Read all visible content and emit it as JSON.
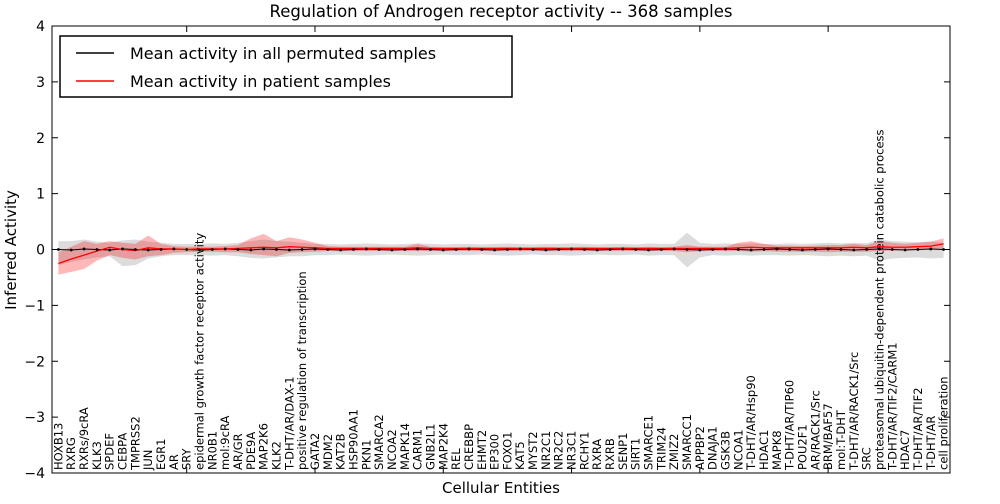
{
  "title": "Regulation of Androgen receptor activity -- 368 samples",
  "axes": {
    "xlabel": "Cellular Entities",
    "ylabel": "Inferred Activity"
  },
  "legend": {
    "items": [
      {
        "label": "Mean activity in all permuted samples",
        "color": "#000000"
      },
      {
        "label": "Mean activity in patient samples",
        "color": "#ff0000"
      }
    ],
    "position": "upper left"
  },
  "colors": {
    "patient_line": "#ff0000",
    "patient_fill": "rgba(255,0,0,0.28)",
    "permuted_line": "#000000",
    "permuted_fill": "rgba(128,128,128,0.28)",
    "axis": "#000000",
    "background": "#ffffff"
  },
  "chart_data": {
    "type": "line",
    "title": "Regulation of Androgen receptor activity -- 368 samples",
    "xlabel": "Cellular Entities",
    "ylabel": "Inferred Activity",
    "ylim": [
      -4,
      4
    ],
    "yticks": [
      -4,
      -3,
      -2,
      -1,
      0,
      1,
      2,
      3,
      4
    ],
    "xticks_major": [
      10,
      20,
      30,
      40,
      50,
      60
    ],
    "grid": false,
    "legend_position": "upper left",
    "marker_style": "black dot at every category on permuted mean",
    "categories": [
      "HOXB13",
      "RXRG",
      "RXRs/9cRA",
      "KLK3",
      "SPDEF",
      "CEBPA",
      "TMPRSS2",
      "JUN",
      "EGR1",
      "AR",
      "SRY",
      "epidermal growth factor receptor activity",
      "NR0B1",
      "mol:9cRA",
      "AR/GR",
      "PDE9A",
      "MAP2K6",
      "KLK2",
      "T-DHT/AR/DAX-1",
      "positive regulation of transcription",
      "GATA2",
      "MDM2",
      "KAT2B",
      "HSP90AA1",
      "PKN1",
      "SMARCA2",
      "NCOA2",
      "MAPK14",
      "CARM1",
      "GNB2L1",
      "MAP2K4",
      "REL",
      "CREBBP",
      "EHMT2",
      "EP300",
      "FOXO1",
      "KAT5",
      "MYST2",
      "NR2C1",
      "NR2C2",
      "NR3C1",
      "RCHY1",
      "RXRA",
      "RXRB",
      "SENP1",
      "SIRT1",
      "SMARCE1",
      "TRIM24",
      "ZMIZ2",
      "SMARCC1",
      "APPBP2",
      "DNAJA1",
      "GSK3B",
      "NCOA1",
      "T-DHT/AR/Hsp90",
      "HDAC1",
      "MAPK8",
      "T-DHT/AR/TIP60",
      "POU2F1",
      "AR/RACK1/Src",
      "BRM/BAF57",
      "mol:T-DHT",
      "T-DHT/AR/RACK1/Src",
      "SRC",
      "proteasomal ubiquitin-dependent protein catabolic process",
      "T-DHT/AR/TIF2/CARM1",
      "HDAC7",
      "T-DHT/AR/TIF2",
      "T-DHT/AR",
      "cell proliferation"
    ],
    "series": [
      {
        "name": "Mean activity in all permuted samples",
        "color": "#000000",
        "values": [
          0,
          -0.01,
          0.01,
          0,
          -0.01,
          0.01,
          0,
          -0.01,
          0,
          0.01,
          0,
          -0.01,
          0,
          0.01,
          0,
          -0.01,
          0.01,
          0,
          -0.01,
          0,
          0.01,
          0,
          -0.01,
          0,
          0.01,
          0,
          -0.01,
          0,
          0.01,
          0,
          -0.01,
          0,
          0.01,
          0,
          -0.01,
          0,
          0.01,
          0,
          -0.01,
          0,
          0.01,
          0,
          -0.01,
          0,
          0.01,
          0,
          -0.01,
          0,
          0.01,
          0,
          -0.01,
          0,
          0.01,
          0,
          -0.01,
          0,
          0.01,
          0,
          -0.01,
          0,
          0.01,
          0,
          -0.01,
          0,
          0.01,
          0,
          -0.01,
          0,
          0.01,
          0
        ],
        "band_upper": [
          0.15,
          0.15,
          0.18,
          0.14,
          0.12,
          0.16,
          0.18,
          0.14,
          0.12,
          0.1,
          0.1,
          0.1,
          0.11,
          0.1,
          0.12,
          0.15,
          0.18,
          0.15,
          0.14,
          0.12,
          0.1,
          0.1,
          0.09,
          0.1,
          0.11,
          0.1,
          0.09,
          0.1,
          0.11,
          0.1,
          0.09,
          0.1,
          0.1,
          0.09,
          0.1,
          0.11,
          0.1,
          0.09,
          0.1,
          0.1,
          0.11,
          0.1,
          0.09,
          0.1,
          0.1,
          0.09,
          0.11,
          0.1,
          0.1,
          0.3,
          0.12,
          0.1,
          0.11,
          0.1,
          0.11,
          0.1,
          0.1,
          0.11,
          0.1,
          0.11,
          0.12,
          0.11,
          0.12,
          0.11,
          0.18,
          0.15,
          0.14,
          0.13,
          0.14,
          0.12
        ],
        "band_lower": [
          -0.28,
          -0.22,
          -0.18,
          -0.14,
          -0.12,
          -0.3,
          -0.28,
          -0.16,
          -0.12,
          -0.1,
          -0.1,
          -0.1,
          -0.11,
          -0.1,
          -0.12,
          -0.15,
          -0.16,
          -0.14,
          -0.12,
          -0.12,
          -0.1,
          -0.1,
          -0.09,
          -0.1,
          -0.11,
          -0.1,
          -0.09,
          -0.1,
          -0.11,
          -0.1,
          -0.09,
          -0.1,
          -0.1,
          -0.09,
          -0.1,
          -0.11,
          -0.1,
          -0.09,
          -0.1,
          -0.1,
          -0.11,
          -0.1,
          -0.09,
          -0.1,
          -0.1,
          -0.09,
          -0.11,
          -0.1,
          -0.1,
          -0.32,
          -0.14,
          -0.1,
          -0.11,
          -0.1,
          -0.11,
          -0.1,
          -0.1,
          -0.11,
          -0.1,
          -0.11,
          -0.12,
          -0.11,
          -0.12,
          -0.11,
          -0.2,
          -0.16,
          -0.15,
          -0.14,
          -0.16,
          -0.15
        ]
      },
      {
        "name": "Mean activity in patient samples",
        "color": "#ff0000",
        "values": [
          -0.25,
          -0.17,
          -0.1,
          -0.03,
          0.04,
          0.0,
          -0.02,
          0.03,
          0.01,
          0.01,
          0.0,
          0.01,
          0.01,
          0.01,
          0.02,
          0.03,
          0.04,
          0.03,
          0.05,
          0.04,
          0.03,
          0.02,
          0.02,
          0.02,
          0.02,
          0.02,
          0.02,
          0.02,
          0.03,
          0.02,
          0.02,
          0.02,
          0.02,
          0.02,
          0.02,
          0.02,
          0.02,
          0.02,
          0.02,
          0.02,
          0.02,
          0.02,
          0.02,
          0.02,
          0.02,
          0.02,
          0.02,
          0.02,
          0.02,
          0.02,
          0.02,
          0.02,
          0.02,
          0.03,
          0.04,
          0.03,
          0.03,
          0.03,
          0.03,
          0.03,
          0.03,
          0.03,
          0.04,
          0.03,
          0.05,
          0.04,
          0.04,
          0.05,
          0.06,
          0.1
        ],
        "band_upper": [
          -0.05,
          0.05,
          0.15,
          0.1,
          0.15,
          0.12,
          0.1,
          0.25,
          0.1,
          0.06,
          0.05,
          0.05,
          0.05,
          0.06,
          0.08,
          0.2,
          0.28,
          0.15,
          0.22,
          0.18,
          0.12,
          0.06,
          0.05,
          0.05,
          0.05,
          0.05,
          0.05,
          0.05,
          0.1,
          0.05,
          0.04,
          0.04,
          0.05,
          0.04,
          0.04,
          0.05,
          0.04,
          0.04,
          0.05,
          0.04,
          0.04,
          0.05,
          0.04,
          0.04,
          0.05,
          0.04,
          0.05,
          0.04,
          0.05,
          0.08,
          0.05,
          0.05,
          0.05,
          0.12,
          0.15,
          0.1,
          0.07,
          0.07,
          0.06,
          0.07,
          0.08,
          0.08,
          0.1,
          0.08,
          0.15,
          0.12,
          0.1,
          0.12,
          0.14,
          0.2
        ],
        "band_lower": [
          -0.45,
          -0.4,
          -0.35,
          -0.2,
          -0.1,
          -0.15,
          -0.18,
          -0.12,
          -0.1,
          -0.06,
          -0.05,
          -0.04,
          -0.04,
          -0.05,
          -0.05,
          -0.08,
          -0.1,
          -0.12,
          -0.06,
          -0.05,
          -0.04,
          -0.03,
          -0.03,
          -0.03,
          -0.03,
          -0.03,
          -0.03,
          -0.03,
          -0.03,
          -0.03,
          -0.03,
          -0.03,
          -0.03,
          -0.03,
          -0.03,
          -0.03,
          -0.03,
          -0.03,
          -0.03,
          -0.03,
          -0.03,
          -0.03,
          -0.03,
          -0.03,
          -0.03,
          -0.03,
          -0.03,
          -0.03,
          -0.03,
          -0.05,
          -0.03,
          -0.03,
          -0.03,
          -0.03,
          -0.04,
          -0.03,
          -0.04,
          -0.04,
          -0.04,
          -0.04,
          -0.05,
          -0.04,
          -0.04,
          -0.04,
          -0.03,
          -0.02,
          -0.02,
          -0.01,
          0.0,
          0.02
        ]
      }
    ]
  }
}
